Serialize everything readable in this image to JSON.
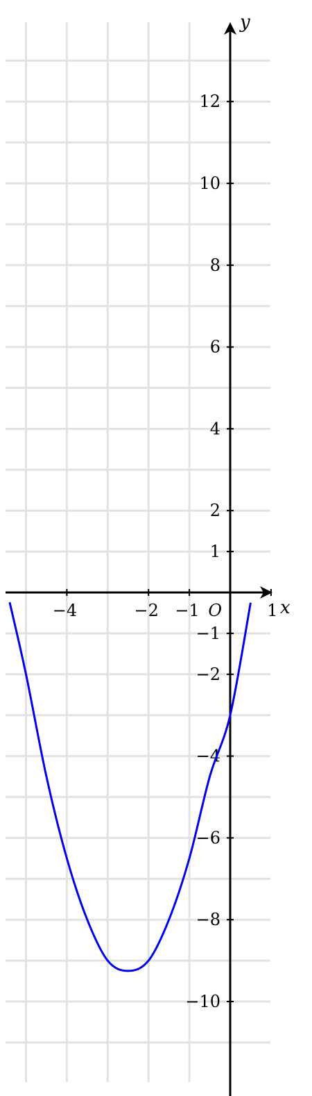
{
  "chart_data": {
    "type": "line",
    "x_axis_label": "x",
    "y_axis_label": "y",
    "origin_label": "O",
    "xlim": [
      -5.5,
      1.05
    ],
    "ylim": [
      -12.3,
      13.9
    ],
    "grid": true,
    "grid_step": 1,
    "x_ticks": [
      {
        "value": -4,
        "label": "−4"
      },
      {
        "value": -2,
        "label": "−2"
      },
      {
        "value": -1,
        "label": "−1"
      },
      {
        "value": 1,
        "label": "1"
      }
    ],
    "y_ticks": [
      {
        "value": 12,
        "label": "12"
      },
      {
        "value": 10,
        "label": "10"
      },
      {
        "value": 8,
        "label": "8"
      },
      {
        "value": 6,
        "label": "6"
      },
      {
        "value": 4,
        "label": "4"
      },
      {
        "value": 2,
        "label": "2"
      },
      {
        "value": 1,
        "label": "1"
      },
      {
        "value": -1,
        "label": "−1"
      },
      {
        "value": -2,
        "label": "−2"
      },
      {
        "value": -4,
        "label": "−4"
      },
      {
        "value": -6,
        "label": "−6"
      },
      {
        "value": -8,
        "label": "−8"
      },
      {
        "value": -10,
        "label": "−10"
      }
    ],
    "series": [
      {
        "color": "#0000ee",
        "x": [
          -5.4,
          -5.0,
          -4.5,
          -4.0,
          -3.5,
          -3.0,
          -2.5,
          -2.0,
          -1.5,
          -1.0,
          -0.5,
          0.0,
          0.5
        ],
        "y": [
          -0.24,
          -2.0,
          -4.5,
          -6.5,
          -8.0,
          -9.0,
          -9.25,
          -9.0,
          -8.0,
          -6.5,
          -4.5,
          -3.0,
          -0.25
        ]
      }
    ]
  }
}
